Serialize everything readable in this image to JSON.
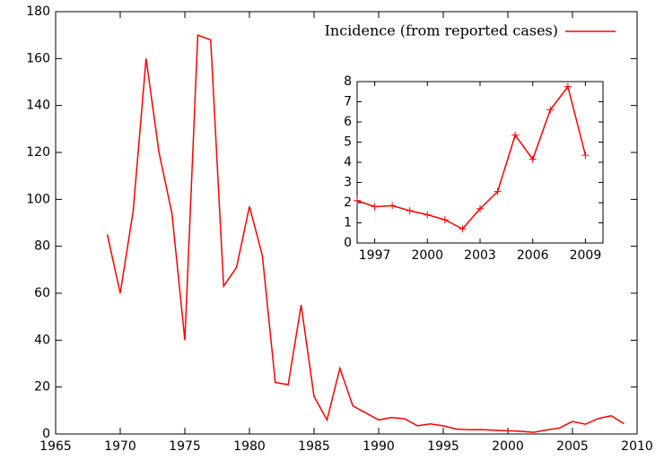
{
  "chart_data": [
    {
      "type": "line",
      "x": [
        1969,
        1970,
        1971,
        1972,
        1973,
        1974,
        1975,
        1976,
        1977,
        1978,
        1979,
        1980,
        1981,
        1982,
        1983,
        1984,
        1985,
        1986,
        1987,
        1988,
        1989,
        1990,
        1991,
        1992,
        1993,
        1994,
        1995,
        1996,
        1997,
        1998,
        1999,
        2000,
        2001,
        2002,
        2003,
        2004,
        2005,
        2006,
        2007,
        2008,
        2009
      ],
      "series": [
        {
          "name": "Incidence (from reported cases)",
          "color": "#ff0000",
          "values": [
            85,
            60,
            95,
            160,
            120,
            94,
            40,
            170,
            168,
            63,
            71,
            97,
            76,
            22,
            21,
            55,
            16,
            6,
            28,
            12,
            9,
            6,
            7,
            6.5,
            3.5,
            4.3,
            3.5,
            2.1,
            1.8,
            1.85,
            1.6,
            1.4,
            1.15,
            0.7,
            1.7,
            2.55,
            5.35,
            4.15,
            6.6,
            7.75,
            4.35
          ]
        }
      ],
      "xlim": [
        1965,
        2010
      ],
      "xticks": [
        1965,
        1970,
        1975,
        1980,
        1985,
        1990,
        1995,
        2000,
        2005,
        2010
      ],
      "ylim": [
        0,
        180
      ],
      "yticks": [
        0,
        20,
        40,
        60,
        80,
        100,
        120,
        140,
        160,
        180
      ],
      "legend": "top-right"
    },
    {
      "type": "line",
      "marker": "+",
      "x": [
        1996,
        1997,
        1998,
        1999,
        2000,
        2001,
        2002,
        2003,
        2004,
        2005,
        2006,
        2007,
        2008,
        2009
      ],
      "series": [
        {
          "color": "#ff0000",
          "values": [
            2.1,
            1.8,
            1.85,
            1.6,
            1.4,
            1.15,
            0.7,
            1.7,
            2.55,
            5.35,
            4.15,
            6.6,
            7.75,
            4.35
          ]
        }
      ],
      "xlim": [
        1996,
        2010
      ],
      "xticks": [
        1997,
        2000,
        2003,
        2006,
        2009
      ],
      "ylim": [
        0,
        8
      ],
      "yticks": [
        0,
        1,
        2,
        3,
        4,
        5,
        6,
        7,
        8
      ]
    }
  ]
}
